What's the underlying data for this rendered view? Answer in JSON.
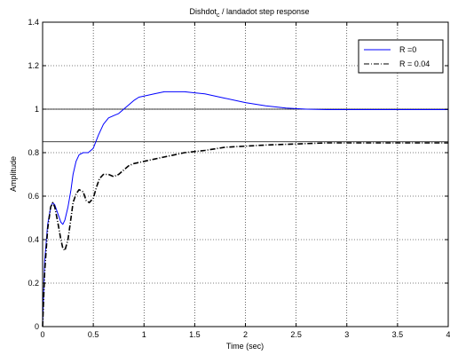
{
  "chart_data": {
    "type": "line",
    "title": {
      "main": "Dishdot",
      "subscript": "c",
      "rest": " / landadot step response"
    },
    "xlabel": "Time (sec)",
    "ylabel": "Amplitude",
    "xlim": [
      0,
      4
    ],
    "ylim": [
      0,
      1.4
    ],
    "xticks": [
      "0",
      "0.5",
      "1",
      "1.5",
      "2",
      "2.5",
      "3",
      "3.5",
      "4"
    ],
    "yticks": [
      "0",
      "0.2",
      "0.4",
      "0.6",
      "0.8",
      "1",
      "1.2",
      "1.4"
    ],
    "grid": true,
    "legend_position": "top-right",
    "reference_lines": [
      1.0,
      0.85
    ],
    "series": [
      {
        "name": "R =0",
        "color": "#0000ff",
        "style": "solid",
        "x": [
          0,
          0.02,
          0.05,
          0.08,
          0.1,
          0.12,
          0.15,
          0.18,
          0.2,
          0.22,
          0.25,
          0.28,
          0.3,
          0.33,
          0.36,
          0.4,
          0.45,
          0.5,
          0.55,
          0.6,
          0.65,
          0.7,
          0.75,
          0.8,
          0.85,
          0.9,
          0.95,
          1.0,
          1.1,
          1.2,
          1.3,
          1.4,
          1.5,
          1.6,
          1.8,
          2.0,
          2.2,
          2.4,
          2.6,
          2.8,
          3.0,
          3.2,
          3.5,
          4.0
        ],
        "y": [
          0,
          0.3,
          0.47,
          0.55,
          0.57,
          0.56,
          0.52,
          0.48,
          0.47,
          0.49,
          0.55,
          0.63,
          0.7,
          0.76,
          0.79,
          0.8,
          0.8,
          0.82,
          0.88,
          0.93,
          0.96,
          0.97,
          0.98,
          1.0,
          1.02,
          1.04,
          1.055,
          1.06,
          1.07,
          1.08,
          1.08,
          1.08,
          1.075,
          1.07,
          1.05,
          1.03,
          1.015,
          1.005,
          1.0,
          0.998,
          0.998,
          0.998,
          0.998,
          0.998
        ]
      },
      {
        "name": "R = 0.04",
        "color": "#000000",
        "style": "dashdot",
        "x": [
          0,
          0.02,
          0.05,
          0.08,
          0.1,
          0.12,
          0.15,
          0.18,
          0.2,
          0.22,
          0.25,
          0.28,
          0.3,
          0.33,
          0.36,
          0.4,
          0.43,
          0.46,
          0.5,
          0.53,
          0.56,
          0.6,
          0.65,
          0.7,
          0.75,
          0.8,
          0.85,
          0.9,
          1.0,
          1.1,
          1.2,
          1.4,
          1.6,
          1.8,
          2.0,
          2.2,
          2.5,
          2.8,
          3.0,
          3.5,
          4.0
        ],
        "y": [
          0,
          0.25,
          0.45,
          0.55,
          0.57,
          0.55,
          0.48,
          0.4,
          0.36,
          0.35,
          0.4,
          0.5,
          0.57,
          0.61,
          0.63,
          0.62,
          0.58,
          0.57,
          0.59,
          0.64,
          0.68,
          0.7,
          0.7,
          0.69,
          0.7,
          0.72,
          0.74,
          0.75,
          0.76,
          0.77,
          0.78,
          0.8,
          0.81,
          0.825,
          0.83,
          0.835,
          0.84,
          0.845,
          0.845,
          0.845,
          0.845
        ]
      }
    ]
  }
}
